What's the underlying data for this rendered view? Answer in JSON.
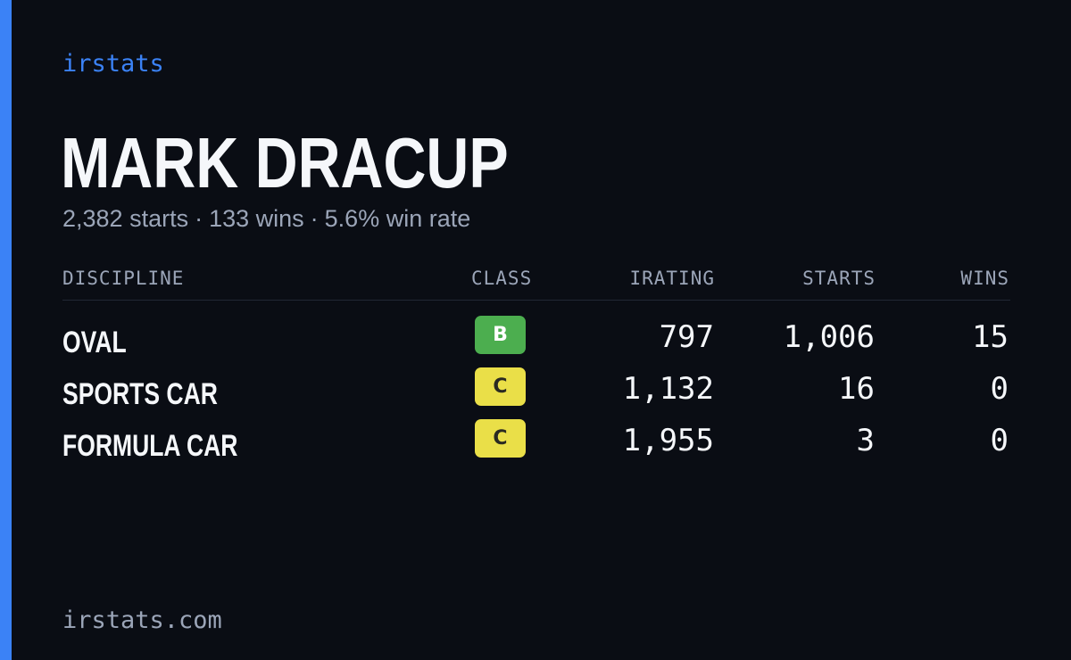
{
  "brand": "irstats",
  "driver": {
    "name": "MARK DRACUP",
    "starts": "2,382 starts",
    "wins": "133 wins",
    "win_rate": "5.6% win rate",
    "separator": "·"
  },
  "table": {
    "headers": {
      "discipline": "DISCIPLINE",
      "class": "CLASS",
      "irating": "IRATING",
      "starts": "STARTS",
      "wins": "WINS"
    },
    "rows": [
      {
        "discipline": "OVAL",
        "class": "B",
        "class_color": "#4cae4f",
        "irating": "797",
        "starts": "1,006",
        "wins": "15"
      },
      {
        "discipline": "SPORTS CAR",
        "class": "C",
        "class_color": "#eadf48",
        "irating": "1,132",
        "starts": "16",
        "wins": "0"
      },
      {
        "discipline": "FORMULA CAR",
        "class": "C",
        "class_color": "#eadf48",
        "irating": "1,955",
        "starts": "3",
        "wins": "0"
      }
    ]
  },
  "footer": "irstats.com",
  "colors": {
    "accent": "#3b82f6",
    "background": "#0a0d14"
  }
}
